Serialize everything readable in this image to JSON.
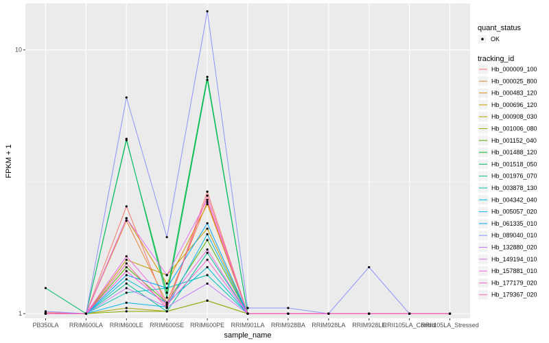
{
  "chart_data": {
    "type": "line",
    "xlabel": "sample_name",
    "ylabel": "FPKM + 1",
    "y_scale": "log10",
    "ylim": [
      0.96,
      15
    ],
    "y_ticks": [
      1,
      10
    ],
    "grid": true,
    "panel_background": "#ebebeb",
    "legend_placement": "right",
    "categories": [
      "PB350LA",
      "RRIM600LA",
      "RRIM600LE",
      "RRIM600SE",
      "RRIM600PE",
      "RRIM901LA",
      "RRIM928BA",
      "RRIM928LA",
      "RRIM928LE",
      "RRII105LA_Control",
      "RRII105LA_Stressed"
    ],
    "quant_status": {
      "title": "quant_status",
      "entries": [
        "OK"
      ]
    },
    "tracking_id_title": "tracking_id",
    "series": [
      {
        "name": "Hb_000009_100",
        "color": "#F8766D",
        "values": [
          1.01,
          1.0,
          2.55,
          1.05,
          2.9,
          1.0,
          1.0,
          1.0,
          1.0,
          1.0,
          1.0
        ]
      },
      {
        "name": "Hb_000025_800",
        "color": "#EB8335",
        "values": [
          1.0,
          1.0,
          2.25,
          1.1,
          2.65,
          1.0,
          1.0,
          1.0,
          1.0,
          1.0,
          1.0
        ]
      },
      {
        "name": "Hb_000483_120",
        "color": "#DA8F00",
        "values": [
          1.0,
          1.0,
          2.3,
          1.3,
          2.6,
          1.0,
          1.0,
          1.0,
          1.0,
          1.0,
          1.0
        ]
      },
      {
        "name": "Hb_000696_120",
        "color": "#C49A00",
        "values": [
          1.0,
          1.0,
          1.6,
          1.4,
          2.1,
          1.0,
          1.0,
          1.0,
          1.0,
          1.0,
          1.0
        ]
      },
      {
        "name": "Hb_000908_030",
        "color": "#A9A400",
        "values": [
          1.0,
          1.0,
          1.05,
          1.02,
          1.12,
          1.0,
          1.0,
          1.0,
          1.0,
          1.0,
          1.0
        ]
      },
      {
        "name": "Hb_001006_080",
        "color": "#86AC00",
        "values": [
          1.0,
          1.0,
          1.02,
          1.02,
          1.12,
          1.0,
          1.0,
          1.0,
          1.0,
          1.0,
          1.0
        ]
      },
      {
        "name": "Hb_001152_040",
        "color": "#53B400",
        "values": [
          1.0,
          1.0,
          1.5,
          1.1,
          1.9,
          1.0,
          1.0,
          1.0,
          1.0,
          1.0,
          1.0
        ]
      },
      {
        "name": "Hb_001488_120",
        "color": "#00B92E",
        "values": [
          1.0,
          1.0,
          4.55,
          1.2,
          7.9,
          1.0,
          1.0,
          1.0,
          1.0,
          1.0,
          1.0
        ]
      },
      {
        "name": "Hb_001518_050",
        "color": "#00BE67",
        "values": [
          1.25,
          1.0,
          4.6,
          1.15,
          7.7,
          1.0,
          1.0,
          1.0,
          1.0,
          1.0,
          1.0
        ]
      },
      {
        "name": "Hb_001976_070",
        "color": "#00C094",
        "values": [
          1.0,
          1.0,
          1.3,
          1.02,
          1.7,
          1.0,
          1.0,
          1.0,
          1.0,
          1.0,
          1.0
        ]
      },
      {
        "name": "Hb_003878_130",
        "color": "#00C0BA",
        "values": [
          1.0,
          1.0,
          1.2,
          1.25,
          1.4,
          1.0,
          1.0,
          1.0,
          1.0,
          1.0,
          1.0
        ]
      },
      {
        "name": "Hb_004342_040",
        "color": "#00BCD8",
        "values": [
          1.0,
          1.0,
          1.35,
          1.1,
          1.5,
          1.0,
          1.0,
          1.0,
          1.0,
          1.0,
          1.0
        ]
      },
      {
        "name": "Hb_005057_020",
        "color": "#00B4EF",
        "values": [
          1.0,
          1.0,
          1.1,
          1.06,
          2.0,
          1.0,
          1.0,
          1.0,
          1.0,
          1.0,
          1.0
        ]
      },
      {
        "name": "Hb_061335_010",
        "color": "#00A6FF",
        "values": [
          1.0,
          1.0,
          1.4,
          1.25,
          2.2,
          1.0,
          1.0,
          1.0,
          1.0,
          1.0,
          1.0
        ]
      },
      {
        "name": "Hb_089040_010",
        "color": "#8B93FF",
        "values": [
          1.02,
          1.0,
          6.6,
          1.95,
          14.0,
          1.05,
          1.05,
          1.0,
          1.5,
          1.0,
          1.0
        ]
      },
      {
        "name": "Hb_132880_020",
        "color": "#C77CFF",
        "values": [
          1.0,
          1.0,
          1.25,
          1.06,
          1.3,
          1.0,
          1.0,
          1.0,
          1.0,
          1.0,
          1.0
        ]
      },
      {
        "name": "Hb_149194_010",
        "color": "#E46BF7",
        "values": [
          1.0,
          1.0,
          2.3,
          1.4,
          2.7,
          1.0,
          1.0,
          1.0,
          1.0,
          1.0,
          1.0
        ]
      },
      {
        "name": "Hb_157881_010",
        "color": "#F265E7",
        "values": [
          1.0,
          1.0,
          1.65,
          1.1,
          1.75,
          1.0,
          1.0,
          1.0,
          1.0,
          1.0,
          1.0
        ]
      },
      {
        "name": "Hb_177179_020",
        "color": "#FB61D7",
        "values": [
          1.0,
          1.0,
          1.45,
          1.08,
          1.6,
          1.0,
          1.0,
          1.0,
          1.0,
          1.0,
          1.0
        ]
      },
      {
        "name": "Hb_179367_020",
        "color": "#FF67A4",
        "values": [
          1.0,
          1.0,
          1.55,
          1.05,
          2.8,
          1.0,
          1.0,
          1.0,
          1.0,
          1.0,
          1.0
        ]
      }
    ]
  }
}
